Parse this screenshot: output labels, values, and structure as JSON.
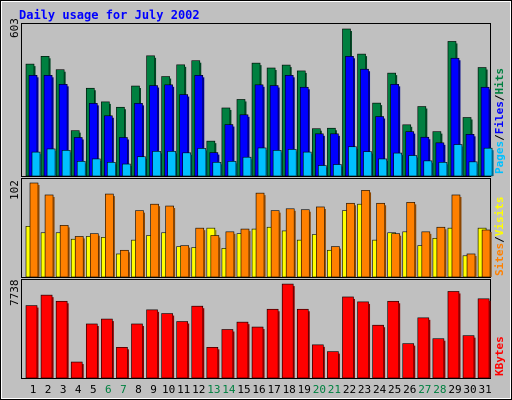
{
  "title": "Daily usage for July 2002",
  "colors": {
    "background": "#c0c0c0",
    "panel_border": "#000000",
    "frame": "#808080",
    "title_text": "#0000ff",
    "hits": "#008040",
    "files": "#0000ff",
    "pages": "#00c0ff",
    "visits": "#ffff00",
    "sites": "#ff8000",
    "kbytes": "#ff0000",
    "weekend_label": "#008040",
    "weekday_label": "#000000"
  },
  "chart_data": [
    {
      "type": "bar",
      "panel": "hits-files-pages",
      "ymax_label": "603",
      "ylim": [
        0,
        603
      ],
      "legend": [
        "Pages",
        "Files",
        "Hits"
      ],
      "legend_separator": "/",
      "categories": [
        "1",
        "2",
        "3",
        "4",
        "5",
        "6",
        "7",
        "8",
        "9",
        "10",
        "11",
        "12",
        "13",
        "14",
        "15",
        "16",
        "17",
        "18",
        "19",
        "20",
        "21",
        "22",
        "23",
        "24",
        "25",
        "26",
        "27",
        "28",
        "29",
        "30",
        "31"
      ],
      "series": [
        {
          "name": "Hits",
          "color": "#008040",
          "values": [
            459,
            491,
            436,
            186,
            360,
            304,
            282,
            369,
            493,
            408,
            456,
            473,
            143,
            279,
            314,
            463,
            443,
            455,
            431,
            194,
            196,
            603,
            500,
            299,
            422,
            210,
            285,
            182,
            552,
            240,
            445
          ]
        },
        {
          "name": "Files",
          "color": "#0000ff",
          "values": [
            413,
            413,
            376,
            158,
            298,
            247,
            158,
            298,
            371,
            374,
            334,
            413,
            96,
            211,
            251,
            374,
            371,
            413,
            364,
            173,
            173,
            491,
            438,
            244,
            376,
            182,
            159,
            136,
            483,
            171,
            364
          ]
        },
        {
          "name": "Pages",
          "color": "#00c0ff",
          "values": [
            98,
            111,
            105,
            60,
            70,
            56,
            49,
            79,
            101,
            101,
            95,
            113,
            56,
            60,
            77,
            115,
            105,
            109,
            98,
            43,
            47,
            120,
            100,
            70,
            94,
            84,
            62,
            56,
            129,
            58,
            114
          ]
        }
      ]
    },
    {
      "type": "bar",
      "panel": "visits-sites",
      "ymax_label": "102",
      "ylim": [
        0,
        102
      ],
      "legend": [
        "Sites",
        "Visits"
      ],
      "legend_separator": "/",
      "categories": [
        "1",
        "2",
        "3",
        "4",
        "5",
        "6",
        "7",
        "8",
        "9",
        "10",
        "11",
        "12",
        "13",
        "14",
        "15",
        "16",
        "17",
        "18",
        "19",
        "20",
        "21",
        "22",
        "23",
        "24",
        "25",
        "26",
        "27",
        "28",
        "29",
        "30",
        "31"
      ],
      "series": [
        {
          "name": "Sites",
          "color": "#ff8000",
          "values": [
            102,
            89,
            56,
            44,
            47,
            90,
            29,
            72,
            79,
            77,
            34,
            53,
            45,
            49,
            52,
            91,
            72,
            74,
            73,
            76,
            33,
            80,
            94,
            80,
            47,
            81,
            49,
            54,
            89,
            25,
            51
          ]
        },
        {
          "name": "Visits",
          "color": "#ffff00",
          "values": [
            55,
            48,
            48,
            41,
            44,
            43,
            25,
            40,
            45,
            48,
            33,
            32,
            53,
            31,
            47,
            52,
            54,
            50,
            40,
            46,
            29,
            72,
            79,
            40,
            48,
            49,
            34,
            42,
            53,
            23,
            53
          ]
        }
      ]
    },
    {
      "type": "bar",
      "panel": "kbytes",
      "ymax_label": "7738",
      "ylim": [
        0,
        7738
      ],
      "legend": [
        "KBytes"
      ],
      "categories": [
        "1",
        "2",
        "3",
        "4",
        "5",
        "6",
        "7",
        "8",
        "9",
        "10",
        "11",
        "12",
        "13",
        "14",
        "15",
        "16",
        "17",
        "18",
        "19",
        "20",
        "21",
        "22",
        "23",
        "24",
        "25",
        "26",
        "27",
        "28",
        "29",
        "30",
        "31"
      ],
      "series": [
        {
          "name": "KBytes",
          "color": "#ff0000",
          "values": [
            5900,
            6750,
            6250,
            1300,
            4400,
            4800,
            2500,
            4400,
            5550,
            5250,
            4600,
            5850,
            2500,
            3950,
            4550,
            4150,
            5600,
            7650,
            5600,
            2700,
            2150,
            6600,
            6200,
            4300,
            6250,
            2800,
            4900,
            3200,
            7050,
            3450,
            6450
          ]
        }
      ]
    }
  ],
  "x_axis": {
    "days": [
      "1",
      "2",
      "3",
      "4",
      "5",
      "6",
      "7",
      "8",
      "9",
      "10",
      "11",
      "12",
      "13",
      "14",
      "15",
      "16",
      "17",
      "18",
      "19",
      "20",
      "21",
      "22",
      "23",
      "24",
      "25",
      "26",
      "27",
      "28",
      "29",
      "30",
      "31"
    ],
    "weekend_days": [
      "6",
      "7",
      "13",
      "14",
      "20",
      "21",
      "27",
      "28"
    ]
  }
}
